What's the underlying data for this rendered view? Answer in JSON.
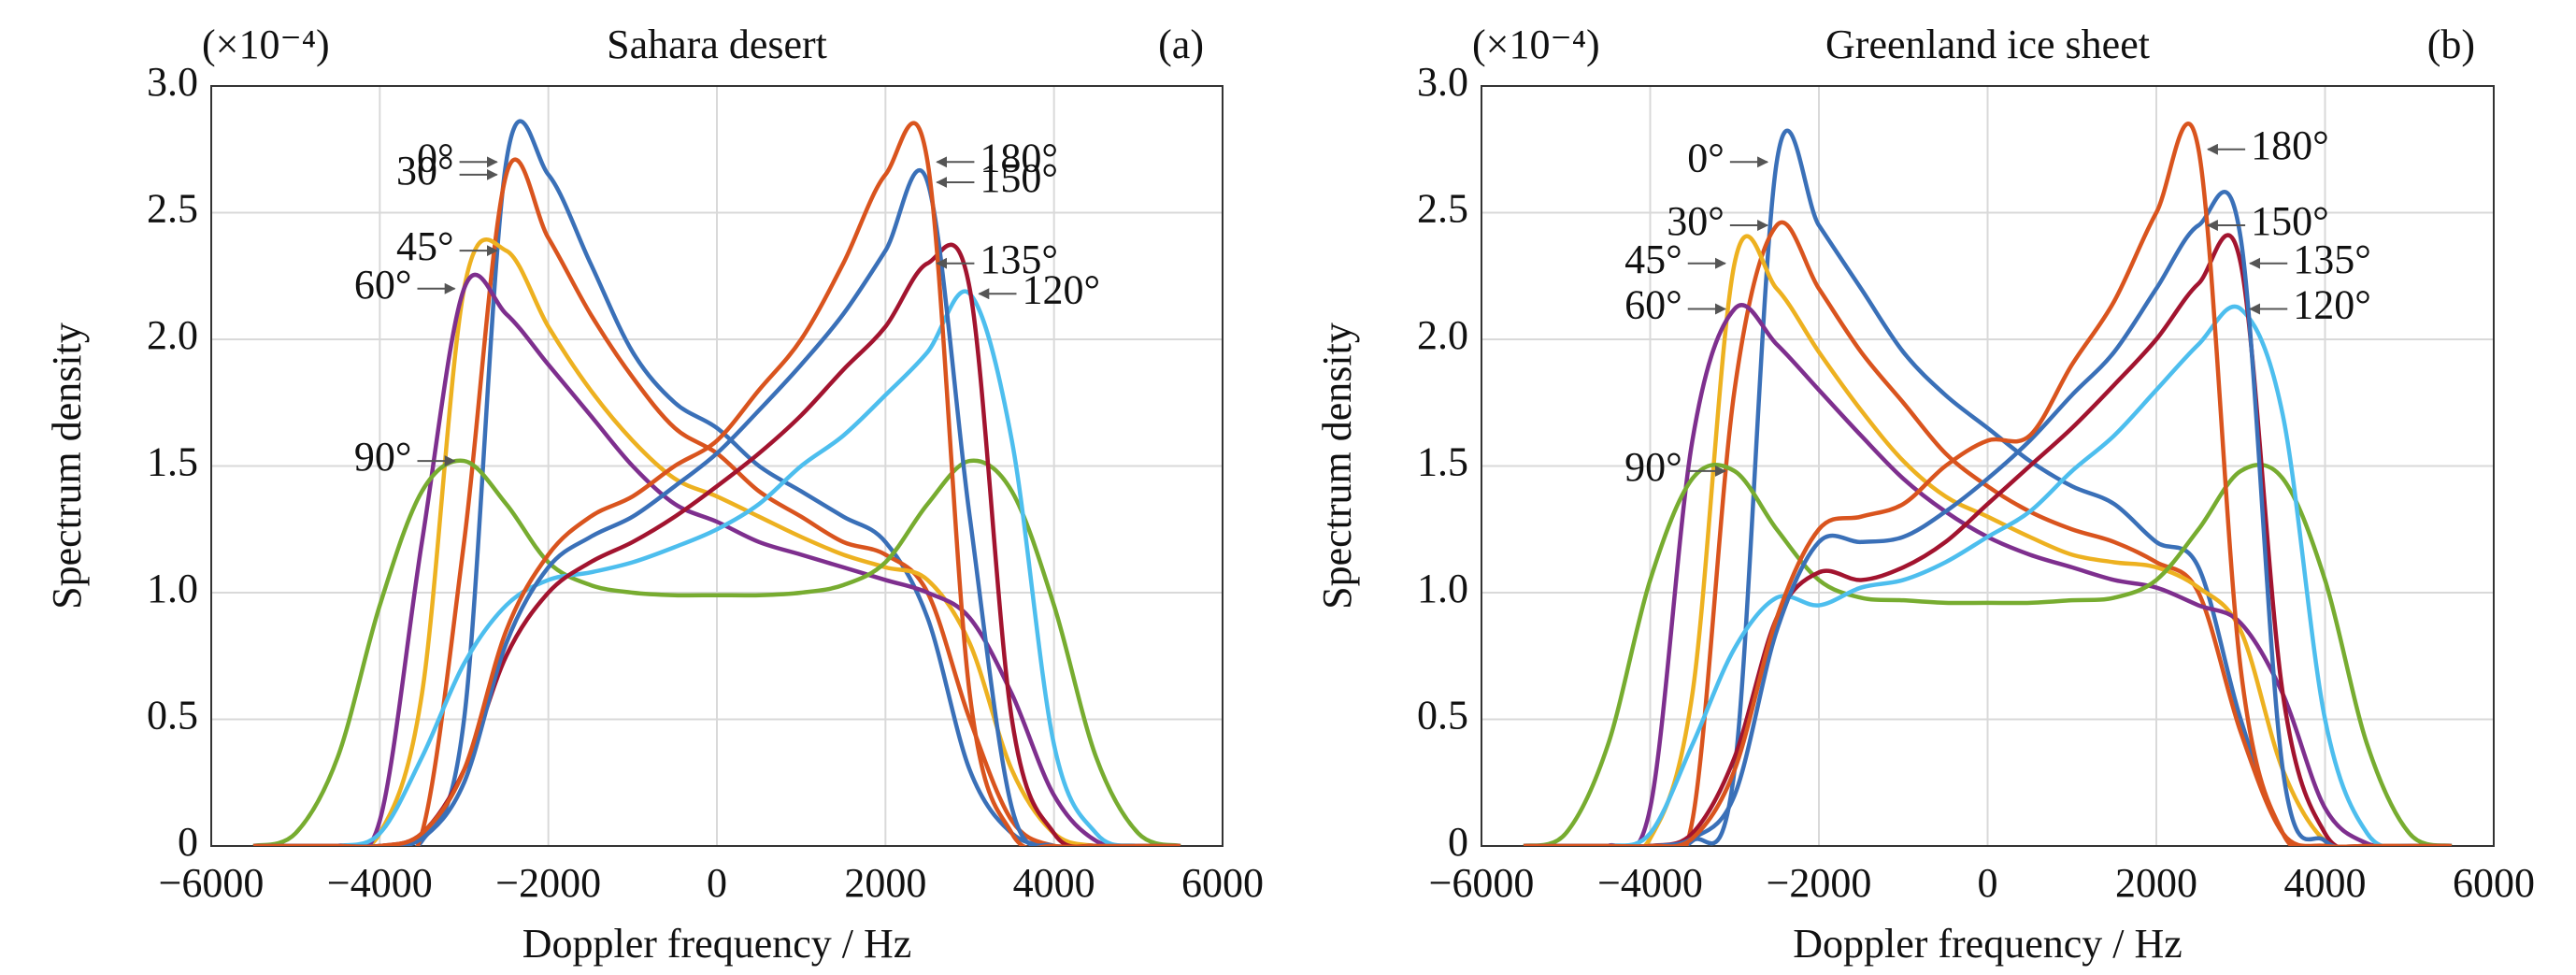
{
  "chart_data": [
    {
      "type": "line",
      "title": "Sahara desert",
      "panel_label": "(a)",
      "y_scale_label": "(×10⁻⁴)",
      "xlabel": "Doppler frequency / Hz",
      "ylabel": "Spectrum density",
      "x": [
        -5500,
        -5000,
        -4500,
        -4000,
        -3500,
        -3000,
        -2500,
        -2000,
        -1500,
        -1000,
        -500,
        0,
        500,
        1000,
        1500,
        2000,
        2500,
        3000,
        3500,
        4000,
        4500,
        5000,
        5500
      ],
      "series": [
        {
          "name": "0°",
          "color": "#3a70b8",
          "values": [
            0,
            0,
            0,
            0,
            0.02,
            0.5,
            2.7,
            2.65,
            2.3,
            1.95,
            1.75,
            1.65,
            1.5,
            1.4,
            1.3,
            1.2,
            0.9,
            0.3,
            0.05,
            0,
            0,
            0,
            0
          ]
        },
        {
          "name": "30°",
          "color": "#d9541e",
          "values": [
            0,
            0,
            0,
            0,
            0.05,
            1.2,
            2.65,
            2.4,
            2.1,
            1.85,
            1.65,
            1.55,
            1.4,
            1.3,
            1.2,
            1.15,
            1.0,
            0.5,
            0.1,
            0,
            0,
            0,
            0
          ]
        },
        {
          "name": "45°",
          "color": "#edb120",
          "values": [
            0,
            0,
            0,
            0.05,
            0.6,
            2.2,
            2.35,
            2.05,
            1.8,
            1.6,
            1.45,
            1.38,
            1.3,
            1.22,
            1.15,
            1.1,
            1.05,
            0.8,
            0.3,
            0.05,
            0,
            0,
            0
          ]
        },
        {
          "name": "60°",
          "color": "#7e2f8e",
          "values": [
            0,
            0,
            0,
            0.1,
            1.2,
            2.2,
            2.1,
            1.9,
            1.7,
            1.5,
            1.35,
            1.28,
            1.2,
            1.15,
            1.1,
            1.05,
            1.0,
            0.9,
            0.6,
            0.2,
            0.02,
            0,
            0
          ]
        },
        {
          "name": "90°",
          "color": "#77ac30",
          "values": [
            0,
            0.05,
            0.35,
            0.95,
            1.4,
            1.52,
            1.35,
            1.12,
            1.03,
            1.0,
            0.99,
            0.99,
            0.99,
            1.0,
            1.03,
            1.12,
            1.35,
            1.52,
            1.4,
            0.95,
            0.35,
            0.05,
            0
          ]
        },
        {
          "name": "120°",
          "color": "#4dbeee",
          "values": [
            0,
            0,
            0,
            0.05,
            0.35,
            0.72,
            0.95,
            1.05,
            1.08,
            1.12,
            1.18,
            1.25,
            1.35,
            1.5,
            1.62,
            1.78,
            1.95,
            2.18,
            1.6,
            0.4,
            0.05,
            0,
            0
          ]
        },
        {
          "name": "135°",
          "color": "#a2142f",
          "values": [
            0,
            0,
            0,
            0,
            0.05,
            0.3,
            0.75,
            1.0,
            1.12,
            1.2,
            1.3,
            1.42,
            1.55,
            1.7,
            1.88,
            2.05,
            2.3,
            2.2,
            0.5,
            0.05,
            0,
            0,
            0
          ]
        },
        {
          "name": "150°",
          "color": "#3a70b8",
          "values": [
            0,
            0,
            0,
            0,
            0.03,
            0.25,
            0.8,
            1.1,
            1.22,
            1.3,
            1.42,
            1.55,
            1.72,
            1.9,
            2.1,
            2.35,
            2.62,
            1.3,
            0.15,
            0,
            0,
            0,
            0
          ]
        },
        {
          "name": "180°",
          "color": "#d9541e",
          "values": [
            0,
            0,
            0,
            0,
            0.05,
            0.3,
            0.85,
            1.15,
            1.3,
            1.38,
            1.5,
            1.6,
            1.8,
            2.0,
            2.3,
            2.65,
            2.7,
            0.6,
            0.05,
            0,
            0,
            0,
            0
          ]
        }
      ],
      "xlim": [
        -6000,
        6000
      ],
      "ylim": [
        0,
        3
      ],
      "xticks": [
        {
          "value": -6000,
          "label": "−6000"
        },
        {
          "value": -4000,
          "label": "−4000"
        },
        {
          "value": -2000,
          "label": "−2000"
        },
        0,
        2000,
        4000,
        6000
      ],
      "yticks": [
        0,
        0.5,
        {
          "value": 1,
          "label": "1.0"
        },
        1.5,
        {
          "value": 2,
          "label": "2.0"
        },
        2.5,
        {
          "value": 3,
          "label": "3.0"
        }
      ],
      "grid": true
    },
    {
      "type": "line",
      "title": "Greenland ice sheet",
      "panel_label": "(b)",
      "y_scale_label": "(×10⁻⁴)",
      "xlabel": "Doppler frequency / Hz",
      "ylabel": "Spectrum density",
      "x": [
        -5500,
        -5000,
        -4500,
        -4000,
        -3500,
        -3000,
        -2500,
        -2000,
        -1500,
        -1000,
        -500,
        0,
        500,
        1000,
        1500,
        2000,
        2500,
        3000,
        3500,
        4000,
        4500,
        5000,
        5500
      ],
      "series": [
        {
          "name": "0°",
          "color": "#3a70b8",
          "values": [
            0,
            0,
            0,
            0,
            0.02,
            0.3,
            2.7,
            2.45,
            2.2,
            1.95,
            1.78,
            1.65,
            1.52,
            1.42,
            1.35,
            1.2,
            1.1,
            0.5,
            0.05,
            0,
            0,
            0,
            0
          ]
        },
        {
          "name": "30°",
          "color": "#d9541e",
          "values": [
            0,
            0,
            0,
            0,
            0.1,
            1.8,
            2.45,
            2.2,
            1.95,
            1.75,
            1.55,
            1.42,
            1.32,
            1.25,
            1.2,
            1.12,
            1.0,
            0.45,
            0.05,
            0,
            0,
            0,
            0
          ]
        },
        {
          "name": "45°",
          "color": "#edb120",
          "values": [
            0,
            0,
            0,
            0.03,
            0.6,
            2.3,
            2.2,
            1.95,
            1.72,
            1.52,
            1.38,
            1.3,
            1.22,
            1.15,
            1.12,
            1.1,
            1.02,
            0.85,
            0.3,
            0.02,
            0,
            0,
            0
          ]
        },
        {
          "name": "60°",
          "color": "#7e2f8e",
          "values": [
            0,
            0,
            0,
            0.15,
            1.6,
            2.12,
            1.98,
            1.8,
            1.62,
            1.45,
            1.32,
            1.22,
            1.15,
            1.1,
            1.05,
            1.02,
            0.95,
            0.88,
            0.6,
            0.15,
            0.01,
            0,
            0
          ]
        },
        {
          "name": "90°",
          "color": "#77ac30",
          "values": [
            0,
            0.05,
            0.4,
            1.05,
            1.45,
            1.48,
            1.25,
            1.05,
            0.98,
            0.97,
            0.96,
            0.96,
            0.96,
            0.97,
            0.98,
            1.05,
            1.25,
            1.48,
            1.45,
            1.05,
            0.4,
            0.05,
            0
          ]
        },
        {
          "name": "120°",
          "color": "#4dbeee",
          "values": [
            0,
            0,
            0,
            0.05,
            0.4,
            0.78,
            0.98,
            0.95,
            1.02,
            1.05,
            1.12,
            1.22,
            1.32,
            1.48,
            1.62,
            1.8,
            1.98,
            2.12,
            1.7,
            0.5,
            0.05,
            0,
            0
          ]
        },
        {
          "name": "135°",
          "color": "#a2142f",
          "values": [
            0,
            0,
            0,
            0,
            0.05,
            0.35,
            0.9,
            1.08,
            1.05,
            1.1,
            1.2,
            1.35,
            1.5,
            1.65,
            1.82,
            2.0,
            2.22,
            2.3,
            0.6,
            0.05,
            0,
            0,
            0
          ]
        },
        {
          "name": "150°",
          "color": "#3a70b8",
          "values": [
            0,
            0,
            0,
            0,
            0.03,
            0.2,
            0.85,
            1.2,
            1.2,
            1.22,
            1.32,
            1.45,
            1.6,
            1.78,
            1.95,
            2.2,
            2.45,
            2.4,
            0.3,
            0.02,
            0,
            0,
            0
          ]
        },
        {
          "name": "180°",
          "color": "#d9541e",
          "values": [
            0,
            0,
            0,
            0,
            0.03,
            0.3,
            0.9,
            1.25,
            1.3,
            1.35,
            1.5,
            1.6,
            1.62,
            1.9,
            2.15,
            2.5,
            2.75,
            0.7,
            0.05,
            0,
            0,
            0,
            0
          ]
        }
      ],
      "xlim": [
        -6000,
        6000
      ],
      "ylim": [
        0,
        3
      ],
      "xticks": [
        {
          "value": -6000,
          "label": "−6000"
        },
        {
          "value": -4000,
          "label": "−4000"
        },
        {
          "value": -2000,
          "label": "−2000"
        },
        0,
        2000,
        4000,
        6000
      ],
      "yticks": [
        0,
        0.5,
        {
          "value": 1,
          "label": "1.0"
        },
        1.5,
        {
          "value": 2,
          "label": "2.0"
        },
        2.5,
        {
          "value": 3,
          "label": "3.0"
        }
      ],
      "grid": true
    }
  ]
}
